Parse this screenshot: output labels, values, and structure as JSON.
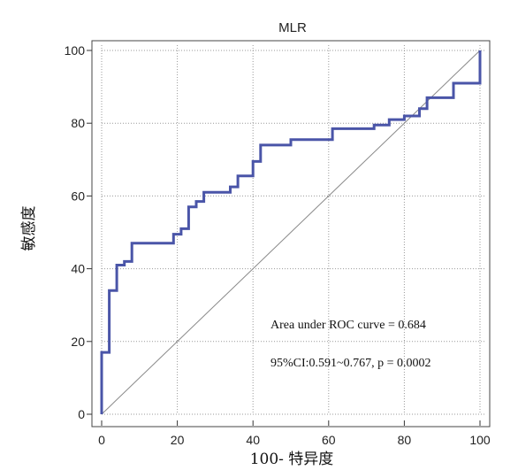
{
  "chart_data": {
    "type": "line",
    "title": "MLR",
    "xlabel": "100- 特异度",
    "ylabel": "敏感度",
    "xlim": [
      0,
      100
    ],
    "ylim": [
      0,
      100
    ],
    "xticks": [
      "0",
      "20",
      "40",
      "60",
      "80",
      "100"
    ],
    "yticks": [
      "0",
      "20",
      "40",
      "60",
      "80",
      "100"
    ],
    "grid": true,
    "series": [
      {
        "name": "",
        "color": "#4a55a8",
        "x": [
          0,
          0,
          2,
          2,
          4,
          4,
          6,
          6,
          8,
          8,
          19,
          19,
          21,
          21,
          23,
          23,
          25,
          25,
          27,
          27,
          34,
          34,
          36,
          36,
          40,
          40,
          42,
          42,
          50,
          50,
          61,
          61,
          72,
          72,
          76,
          76,
          80,
          80,
          84,
          84,
          86,
          86,
          88,
          88,
          93,
          93,
          100,
          100
        ],
        "y": [
          0,
          17,
          17,
          34,
          34,
          41,
          41,
          42,
          42,
          47,
          47,
          49.5,
          49.5,
          51,
          51,
          57,
          57,
          58.5,
          58.5,
          61,
          61,
          62.5,
          62.5,
          65.5,
          65.5,
          69.5,
          69.5,
          74,
          74,
          75.5,
          75.5,
          78.5,
          78.5,
          79.5,
          79.5,
          81,
          81,
          82,
          82,
          84,
          84,
          87,
          87,
          87,
          87,
          91,
          91,
          100
        ]
      }
    ],
    "reference_line": {
      "x": [
        0,
        100
      ],
      "y": [
        0,
        100
      ],
      "color": "#888888"
    },
    "annotations": [
      "Area under ROC curve = 0.684",
      "95%CI:0.591~0.767, p = 0.0002"
    ]
  }
}
